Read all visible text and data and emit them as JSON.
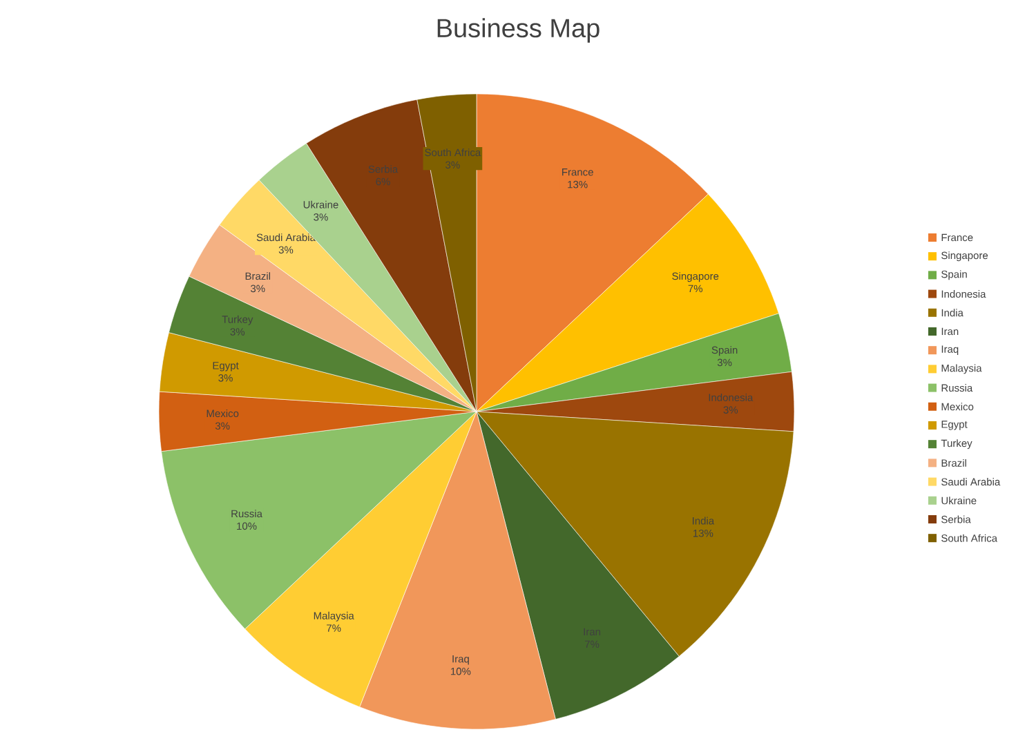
{
  "chart_data": {
    "type": "pie",
    "title": "Business Map",
    "categories": [
      "France",
      "Singapore",
      "Spain",
      "Indonesia",
      "India",
      "Iran",
      "Iraq",
      "Malaysia",
      "Russia",
      "Mexico",
      "Egypt",
      "Turkey",
      "Brazil",
      "Saudi Arabia",
      "Ukraine",
      "Serbia",
      "South Africa"
    ],
    "values": [
      13,
      7,
      3,
      3,
      13,
      7,
      10,
      7,
      10,
      3,
      3,
      3,
      3,
      3,
      3,
      6,
      3
    ],
    "value_labels": [
      "13%",
      "7%",
      "3%",
      "3%",
      "13%",
      "7%",
      "10%",
      "7%",
      "10%",
      "3%",
      "3%",
      "3%",
      "3%",
      "3%",
      "3%",
      "6%",
      "3%"
    ],
    "colors": [
      "#ed7d31",
      "#ffc000",
      "#70ad47",
      "#9e480e",
      "#997300",
      "#43682b",
      "#f1975a",
      "#ffcd33",
      "#8cc168",
      "#d26012",
      "#d09a00",
      "#548235",
      "#f4b183",
      "#ffd966",
      "#a9d18e",
      "#843c0c",
      "#7f6000"
    ],
    "legend": "right"
  }
}
